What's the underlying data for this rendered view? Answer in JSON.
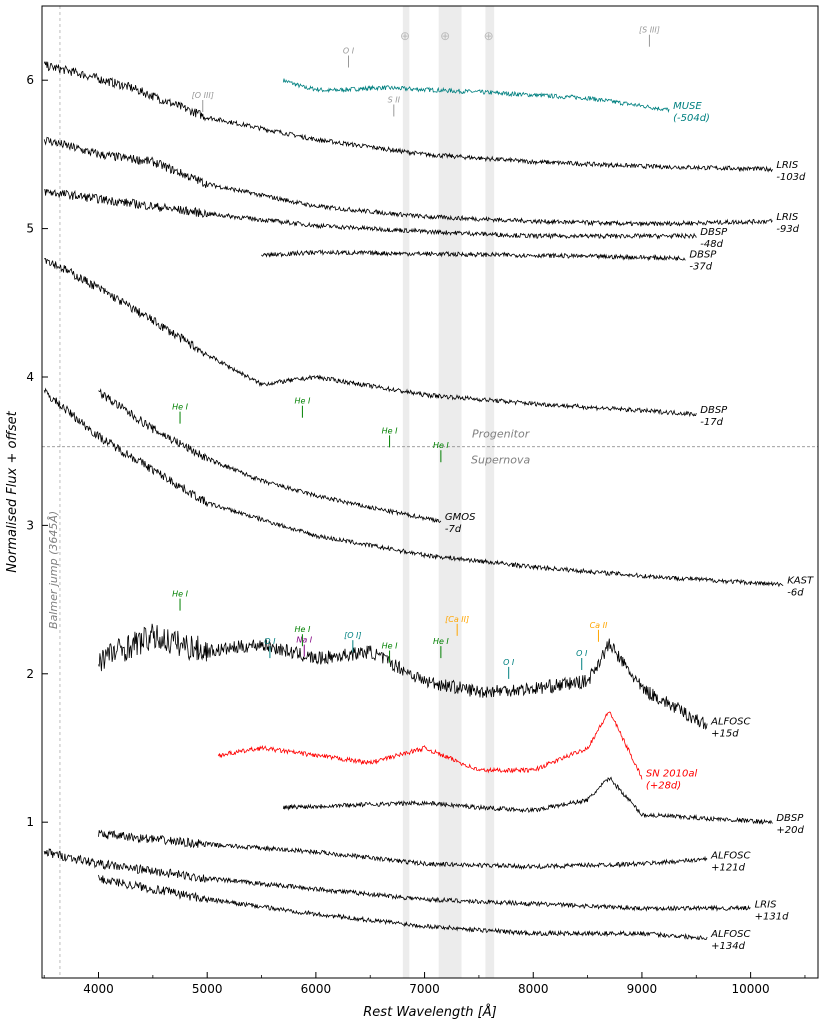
{
  "chart_data": {
    "type": "line",
    "xlabel": "Rest Wavelength [Å]",
    "ylabel": "Normalised Flux + offset",
    "xlim": [
      3480,
      10620
    ],
    "ylim": [
      -0.05,
      6.5
    ],
    "xticks": [
      "4000",
      "5000",
      "6000",
      "7000",
      "8000",
      "9000",
      "10000"
    ],
    "yticks": [
      "1",
      "2",
      "3",
      "4",
      "5",
      "6"
    ],
    "colors": {
      "observed": "#000000",
      "muse": "#008080",
      "comparison": "#ff0000",
      "heI": "#008000",
      "oI": "#008080",
      "caII": "#ffa500",
      "naI": "#800080",
      "grey": "#999999",
      "shade": "#d9d9d9"
    },
    "telluric_bands": [
      [
        6800,
        6860
      ],
      [
        7130,
        7340
      ],
      [
        7560,
        7640
      ]
    ],
    "telluric_symbol": "⊕",
    "telluric_symbol_x": [
      6820,
      7190,
      7590
    ],
    "epoch_divider": {
      "y": 3.53,
      "upper": "Progenitor",
      "lower": "Supernova"
    },
    "balmer_jump": {
      "x": 3645,
      "label": "Balmer jump (3645Å)"
    },
    "series": [
      {
        "name": "MUSE",
        "epoch": "(-504d)",
        "color": "muse",
        "x": [
          5700,
          5900,
          6100,
          6600,
          7500,
          8500,
          9250
        ],
        "y": [
          6.0,
          5.95,
          5.93,
          5.95,
          5.92,
          5.88,
          5.8
        ]
      },
      {
        "name": "LRIS",
        "epoch": "-103d",
        "color": "observed",
        "x": [
          3500,
          3800,
          4300,
          5000,
          6000,
          7000,
          8000,
          9000,
          10200
        ],
        "y": [
          6.1,
          6.05,
          5.95,
          5.75,
          5.6,
          5.5,
          5.45,
          5.42,
          5.4
        ]
      },
      {
        "name": "LRIS",
        "epoch": "-93d",
        "color": "observed",
        "x": [
          3500,
          4000,
          4500,
          5000,
          6000,
          7000,
          8000,
          9000,
          10200
        ],
        "y": [
          5.6,
          5.5,
          5.45,
          5.3,
          5.15,
          5.08,
          5.05,
          5.03,
          5.05
        ]
      },
      {
        "name": "DBSP",
        "epoch": "-48d",
        "color": "observed",
        "x": [
          3500,
          4000,
          5000,
          6000,
          7000,
          8000,
          9500
        ],
        "y": [
          5.25,
          5.2,
          5.1,
          5.02,
          4.98,
          4.95,
          4.95
        ]
      },
      {
        "name": "DBSP",
        "epoch": "-37d",
        "color": "observed",
        "x": [
          5500,
          6000,
          7000,
          8000,
          9400
        ],
        "y": [
          4.82,
          4.84,
          4.83,
          4.82,
          4.8
        ]
      },
      {
        "name": "DBSP",
        "epoch": "-17d",
        "color": "observed",
        "x": [
          3500,
          4000,
          4500,
          5000,
          5500,
          6000,
          7000,
          8000,
          9500
        ],
        "y": [
          4.8,
          4.6,
          4.38,
          4.15,
          3.95,
          4.0,
          3.88,
          3.82,
          3.75
        ]
      },
      {
        "name": "GMOS",
        "epoch": "-7d",
        "color": "observed",
        "x": [
          4000,
          4500,
          5000,
          5500,
          6000,
          6500,
          7000,
          7150
        ],
        "y": [
          3.9,
          3.65,
          3.45,
          3.3,
          3.2,
          3.12,
          3.05,
          3.03
        ]
      },
      {
        "name": "KAST",
        "epoch": "-6d",
        "color": "observed",
        "x": [
          3500,
          4000,
          5000,
          6000,
          7000,
          8000,
          9000,
          10300
        ],
        "y": [
          3.9,
          3.6,
          3.15,
          2.93,
          2.8,
          2.72,
          2.66,
          2.6
        ]
      },
      {
        "name": "ALFOSC",
        "epoch": "+15d",
        "color": "observed",
        "x": [
          4000,
          4500,
          5000,
          5500,
          6000,
          6500,
          7000,
          7500,
          8000,
          8500,
          8700,
          9000,
          9600
        ],
        "y": [
          2.1,
          2.25,
          2.15,
          2.2,
          2.1,
          2.15,
          1.95,
          1.88,
          1.9,
          1.95,
          2.2,
          1.9,
          1.65
        ]
      },
      {
        "name": "SN 2010al",
        "epoch": "(+28d)",
        "color": "comparison",
        "x": [
          5100,
          5500,
          6000,
          6500,
          7000,
          7500,
          8000,
          8500,
          8700,
          9000
        ],
        "y": [
          1.45,
          1.5,
          1.45,
          1.4,
          1.5,
          1.35,
          1.35,
          1.5,
          1.75,
          1.3
        ]
      },
      {
        "name": "DBSP",
        "epoch": "+20d",
        "color": "observed",
        "x": [
          5700,
          6500,
          7000,
          7500,
          8000,
          8500,
          8700,
          9000,
          10200
        ],
        "y": [
          1.1,
          1.12,
          1.13,
          1.1,
          1.08,
          1.15,
          1.3,
          1.05,
          1.0
        ]
      },
      {
        "name": "ALFOSC",
        "epoch": "+121d",
        "color": "observed",
        "x": [
          4000,
          5000,
          6000,
          7000,
          8000,
          9000,
          9600
        ],
        "y": [
          0.92,
          0.85,
          0.8,
          0.72,
          0.7,
          0.72,
          0.75
        ]
      },
      {
        "name": "LRIS",
        "epoch": "+131d",
        "color": "observed",
        "x": [
          3500,
          4000,
          5000,
          6000,
          7000,
          8000,
          9000,
          10000
        ],
        "y": [
          0.8,
          0.72,
          0.62,
          0.55,
          0.48,
          0.45,
          0.42,
          0.42
        ]
      },
      {
        "name": "ALFOSC",
        "epoch": "+134d",
        "color": "observed",
        "x": [
          4000,
          5000,
          6000,
          7000,
          8000,
          9000,
          9600
        ],
        "y": [
          0.62,
          0.48,
          0.38,
          0.3,
          0.25,
          0.25,
          0.22
        ]
      }
    ],
    "line_annotations": [
      {
        "label": "[O III]",
        "x": 4959,
        "y": 5.88,
        "color": "grey"
      },
      {
        "label": "O I",
        "x": 6300,
        "y": 6.18,
        "color": "grey"
      },
      {
        "label": "S II",
        "x": 6717,
        "y": 5.85,
        "color": "grey"
      },
      {
        "label": "[S III]",
        "x": 9069,
        "y": 6.32,
        "color": "grey"
      },
      {
        "label": "He I",
        "x": 4750,
        "y": 3.78,
        "color": "heI"
      },
      {
        "label": "He I",
        "x": 5876,
        "y": 3.82,
        "color": "heI"
      },
      {
        "label": "He I",
        "x": 6678,
        "y": 3.62,
        "color": "heI"
      },
      {
        "label": "He I",
        "x": 7150,
        "y": 3.52,
        "color": "heI"
      },
      {
        "label": "He I",
        "x": 4750,
        "y": 2.52,
        "color": "heI"
      },
      {
        "label": "O I",
        "x": 5577,
        "y": 2.2,
        "color": "oI"
      },
      {
        "label": "He I",
        "x": 5876,
        "y": 2.28,
        "color": "heI"
      },
      {
        "label": "Na I",
        "x": 5893,
        "y": 2.21,
        "color": "naI"
      },
      {
        "label": "[O I]",
        "x": 6340,
        "y": 2.24,
        "color": "oI"
      },
      {
        "label": "He I",
        "x": 6678,
        "y": 2.17,
        "color": "heI"
      },
      {
        "label": "He I",
        "x": 7150,
        "y": 2.2,
        "color": "heI"
      },
      {
        "label": "[Ca II]",
        "x": 7300,
        "y": 2.35,
        "color": "caII"
      },
      {
        "label": "O I",
        "x": 7774,
        "y": 2.06,
        "color": "oI"
      },
      {
        "label": "O I",
        "x": 8446,
        "y": 2.12,
        "color": "oI"
      },
      {
        "label": "Ca II",
        "x": 8600,
        "y": 2.31,
        "color": "caII"
      }
    ]
  }
}
